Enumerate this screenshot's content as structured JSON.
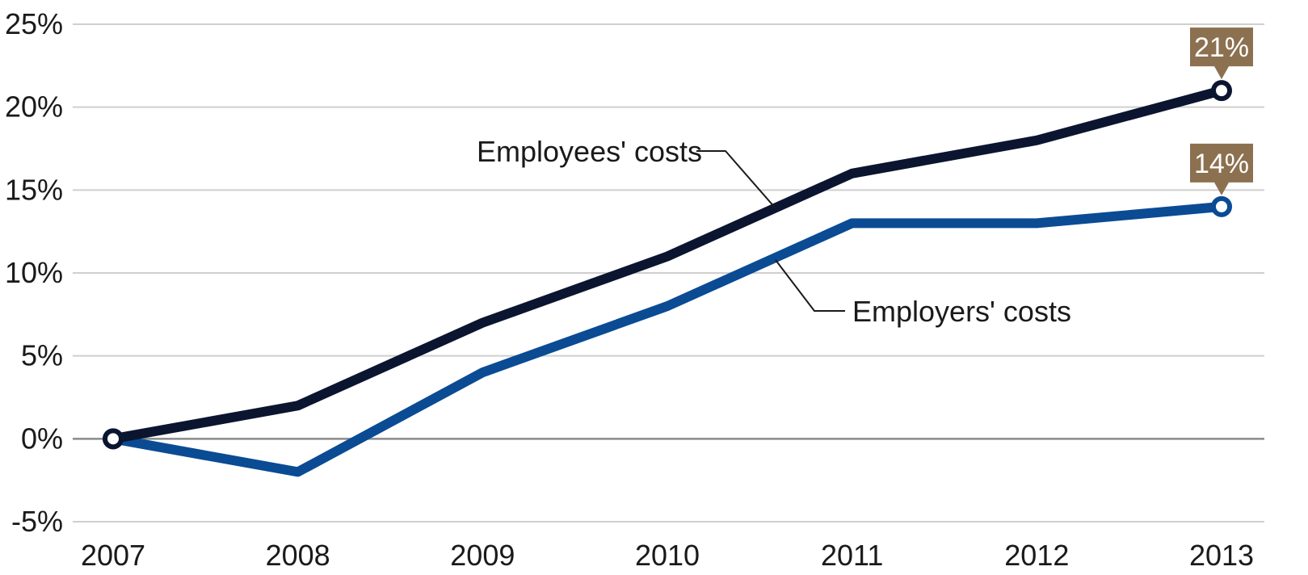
{
  "chart_data": {
    "type": "line",
    "x": [
      "2007",
      "2008",
      "2009",
      "2010",
      "2011",
      "2012",
      "2013"
    ],
    "series": [
      {
        "name": "Employees' costs",
        "values": [
          0,
          2,
          7,
          11,
          16,
          18,
          21
        ],
        "color": "#0b1530",
        "end_label": "21%"
      },
      {
        "name": "Employers' costs",
        "values": [
          0,
          -2,
          4,
          8,
          13,
          13,
          14
        ],
        "color": "#0a4b94",
        "end_label": "14%"
      }
    ],
    "y_ticks": [
      "25%",
      "20%",
      "15%",
      "10%",
      "5%",
      "0%",
      "-5%"
    ],
    "ylim": [
      -5,
      25
    ],
    "grid": true,
    "callout_color": "#8c7150"
  }
}
